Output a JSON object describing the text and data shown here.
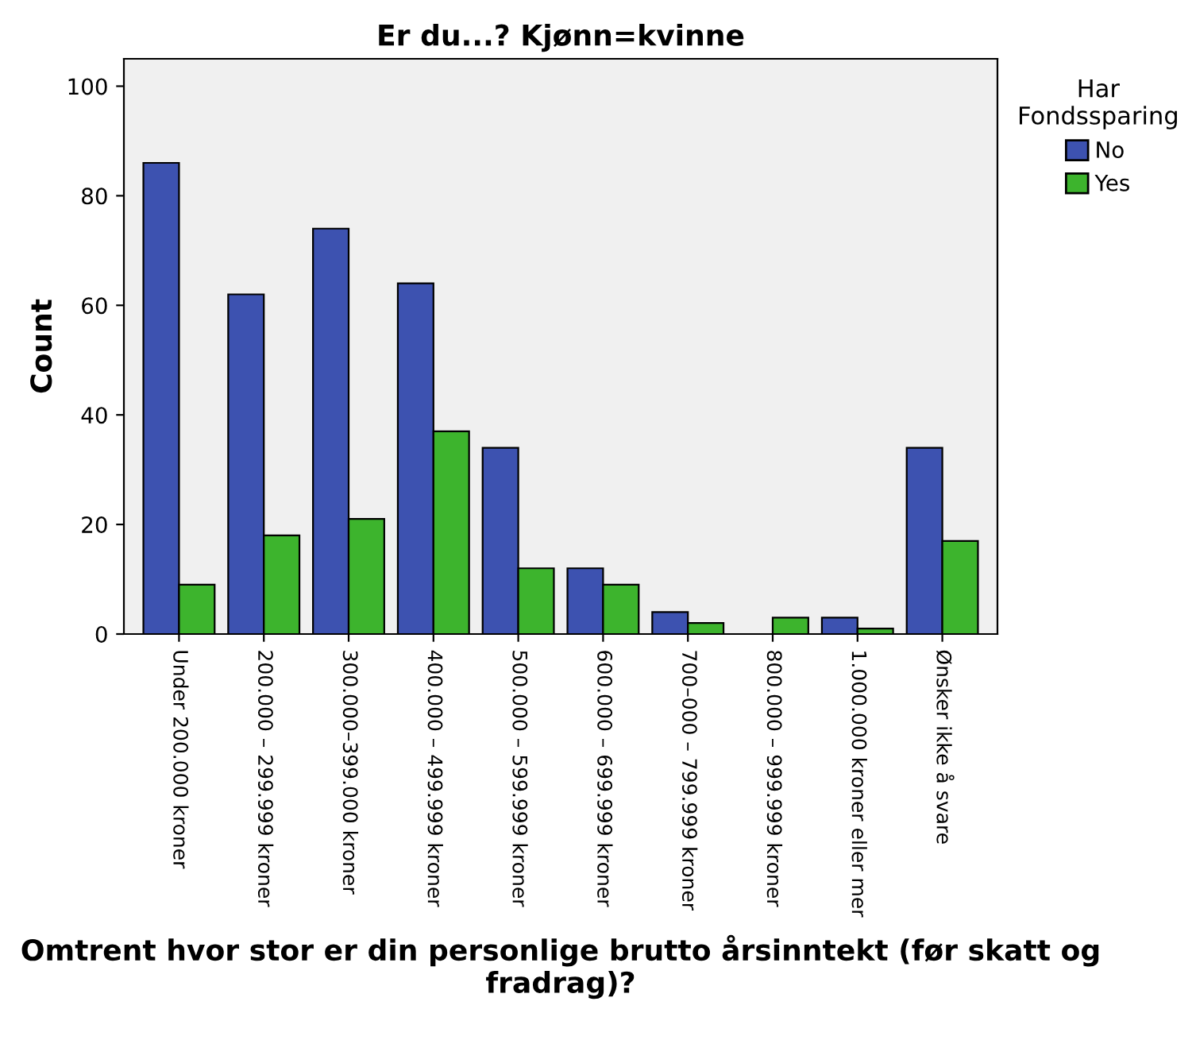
{
  "chart_data": {
    "type": "bar",
    "title": "Er du...? Kjønn=kvinne",
    "xlabel": "Omtrent hvor stor er din personlige brutto årsinntekt (før skatt og fradrag)?",
    "ylabel": "Count",
    "categories": [
      "Under 200.000 kroner",
      "200.000 – 299.999 kroner",
      "300.000–399.000 kroner",
      "400.000 – 499.999 kroner",
      "500.000 – 599.999 kroner",
      "600.000 – 699.999 kroner",
      "700–000 – 799.999 kroner",
      "800.000 – 999.999 kroner",
      "1.000.000 kroner eller mer",
      "Ønsker ikke å svare"
    ],
    "series": [
      {
        "name": "No",
        "color": "#3d52b0",
        "values": [
          86,
          62,
          74,
          64,
          34,
          12,
          4,
          null,
          3,
          34
        ]
      },
      {
        "name": "Yes",
        "color": "#3db42d",
        "values": [
          9,
          18,
          21,
          37,
          12,
          9,
          2,
          3,
          1,
          17
        ]
      }
    ],
    "legend_title": "Har\nFondssparing",
    "legend": "top right",
    "ylim": [
      0,
      105
    ],
    "yticks": [
      0,
      20,
      40,
      60,
      80,
      100
    ],
    "grid": false
  }
}
